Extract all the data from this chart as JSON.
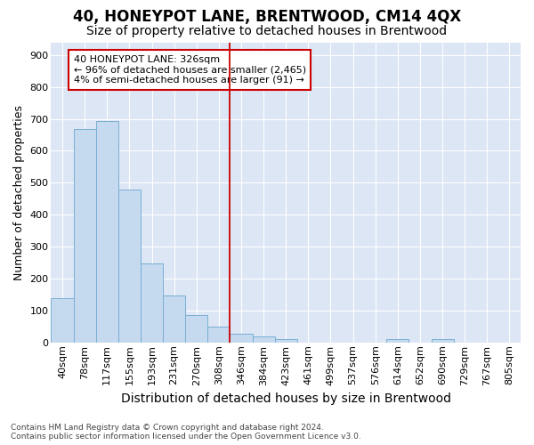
{
  "title": "40, HONEYPOT LANE, BRENTWOOD, CM14 4QX",
  "subtitle": "Size of property relative to detached houses in Brentwood",
  "xlabel": "Distribution of detached houses by size in Brentwood",
  "ylabel": "Number of detached properties",
  "bar_labels": [
    "40sqm",
    "78sqm",
    "117sqm",
    "155sqm",
    "193sqm",
    "231sqm",
    "270sqm",
    "308sqm",
    "346sqm",
    "384sqm",
    "423sqm",
    "461sqm",
    "499sqm",
    "537sqm",
    "576sqm",
    "614sqm",
    "652sqm",
    "690sqm",
    "729sqm",
    "767sqm",
    "805sqm"
  ],
  "bar_values": [
    140,
    668,
    692,
    480,
    248,
    148,
    85,
    50,
    28,
    18,
    10,
    0,
    0,
    0,
    0,
    10,
    0,
    10,
    0,
    0,
    0
  ],
  "bar_color": "#c5d9ef",
  "bar_edge_color": "#7aafd4",
  "vline_color": "#cc0000",
  "vline_bar_index": 8,
  "annotation_text": "40 HONEYPOT LANE: 326sqm\n← 96% of detached houses are smaller (2,465)\n4% of semi-detached houses are larger (91) →",
  "ylim": [
    0,
    940
  ],
  "yticks": [
    0,
    100,
    200,
    300,
    400,
    500,
    600,
    700,
    800,
    900
  ],
  "plot_bg_color": "#dce6f5",
  "grid_color": "#ffffff",
  "title_fontsize": 12,
  "subtitle_fontsize": 10,
  "xlabel_fontsize": 10,
  "ylabel_fontsize": 9,
  "tick_fontsize": 8,
  "footer_line1": "Contains HM Land Registry data © Crown copyright and database right 2024.",
  "footer_line2": "Contains public sector information licensed under the Open Government Licence v3.0."
}
